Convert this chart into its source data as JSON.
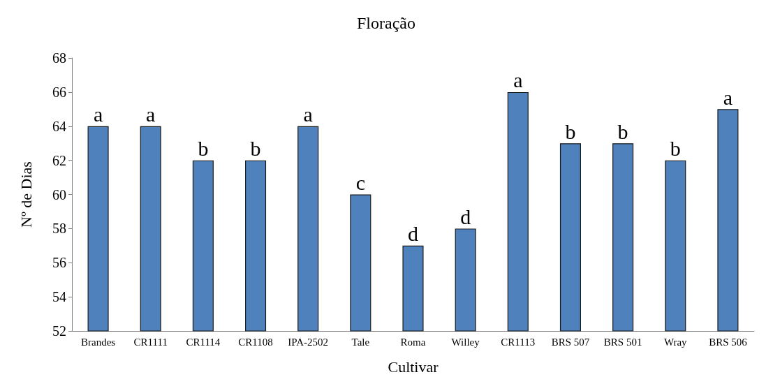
{
  "chart_data": {
    "type": "bar",
    "title": "Floração",
    "xlabel": "Cultivar",
    "ylabel": "Nº de Dias",
    "categories": [
      "Brandes",
      "CR1111",
      "CR1114",
      "CR1108",
      "IPA-2502",
      "Tale",
      "Roma",
      "Willey",
      "CR1113",
      "BRS 507",
      "BRS 501",
      "Wray",
      "BRS 506"
    ],
    "values": [
      64,
      64,
      62,
      62,
      64,
      60,
      57,
      58,
      66,
      63,
      63,
      62,
      65
    ],
    "color": "#4f81bd",
    "ylim": [
      52,
      68
    ],
    "yticks": [
      52,
      54,
      56,
      58,
      60,
      62,
      64,
      66,
      68
    ],
    "grid": false,
    "annotations": [
      {
        "text": "a",
        "x": "Brandes",
        "y": 64
      },
      {
        "text": "a",
        "x": "CR1111",
        "y": 64
      },
      {
        "text": "b",
        "x": "CR1114",
        "y": 62
      },
      {
        "text": "b",
        "x": "CR1108",
        "y": 62
      },
      {
        "text": "a",
        "x": "IPA-2502",
        "y": 64
      },
      {
        "text": "c",
        "x": "Tale",
        "y": 60
      },
      {
        "text": "d",
        "x": "Roma",
        "y": 57
      },
      {
        "text": "d",
        "x": "Willey",
        "y": 58
      },
      {
        "text": "a",
        "x": "CR1113",
        "y": 66
      },
      {
        "text": "b",
        "x": "BRS 507",
        "y": 63
      },
      {
        "text": "b",
        "x": "BRS 501",
        "y": 63
      },
      {
        "text": "b",
        "x": "Wray",
        "y": 62
      },
      {
        "text": "a",
        "x": "BRS 506",
        "y": 65
      }
    ]
  }
}
